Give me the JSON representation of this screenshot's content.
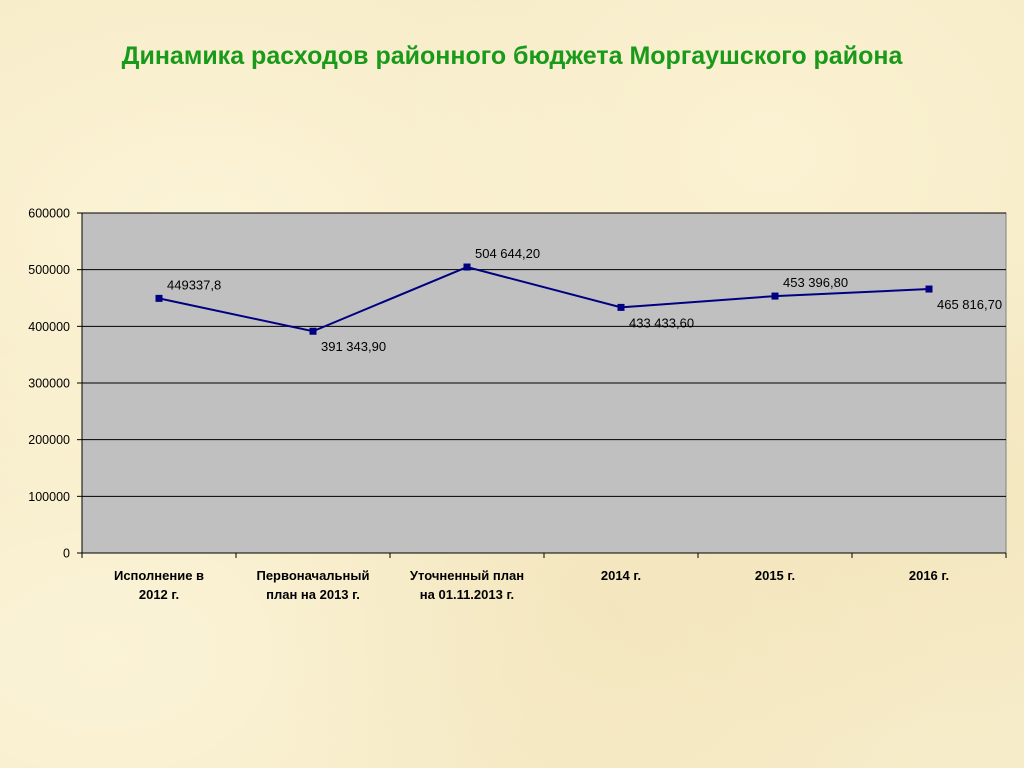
{
  "title": "Динамика расходов районного бюджета Моргаушского района",
  "chart_data": {
    "type": "line",
    "title": "",
    "xlabel": "",
    "ylabel": "",
    "categories": [
      [
        "Исполнение в",
        "2012 г."
      ],
      [
        "Первоначальный",
        "план на 2013 г."
      ],
      [
        "Уточненный план",
        "на 01.11.2013 г."
      ],
      [
        "2014 г."
      ],
      [
        "2015 г."
      ],
      [
        "2016 г."
      ]
    ],
    "series": [
      {
        "values": [
          449337.8,
          391343.9,
          504644.2,
          433433.6,
          453396.8,
          465816.7
        ],
        "data_labels": [
          "449337,8",
          "391 343,90",
          "504 644,20",
          "433 433,60",
          "453 396,80",
          "465 816,70"
        ]
      }
    ],
    "ylim": [
      0,
      600000
    ],
    "yticks": [
      0,
      100000,
      200000,
      300000,
      400000,
      500000,
      600000
    ],
    "ytick_labels": [
      "0",
      "100000",
      "200000",
      "300000",
      "400000",
      "500000",
      "600000"
    ],
    "grid": true,
    "legend": "none",
    "colors": {
      "line": "#000080",
      "plot_background": "#c0c0c0",
      "title": "#1a9a1a"
    }
  }
}
